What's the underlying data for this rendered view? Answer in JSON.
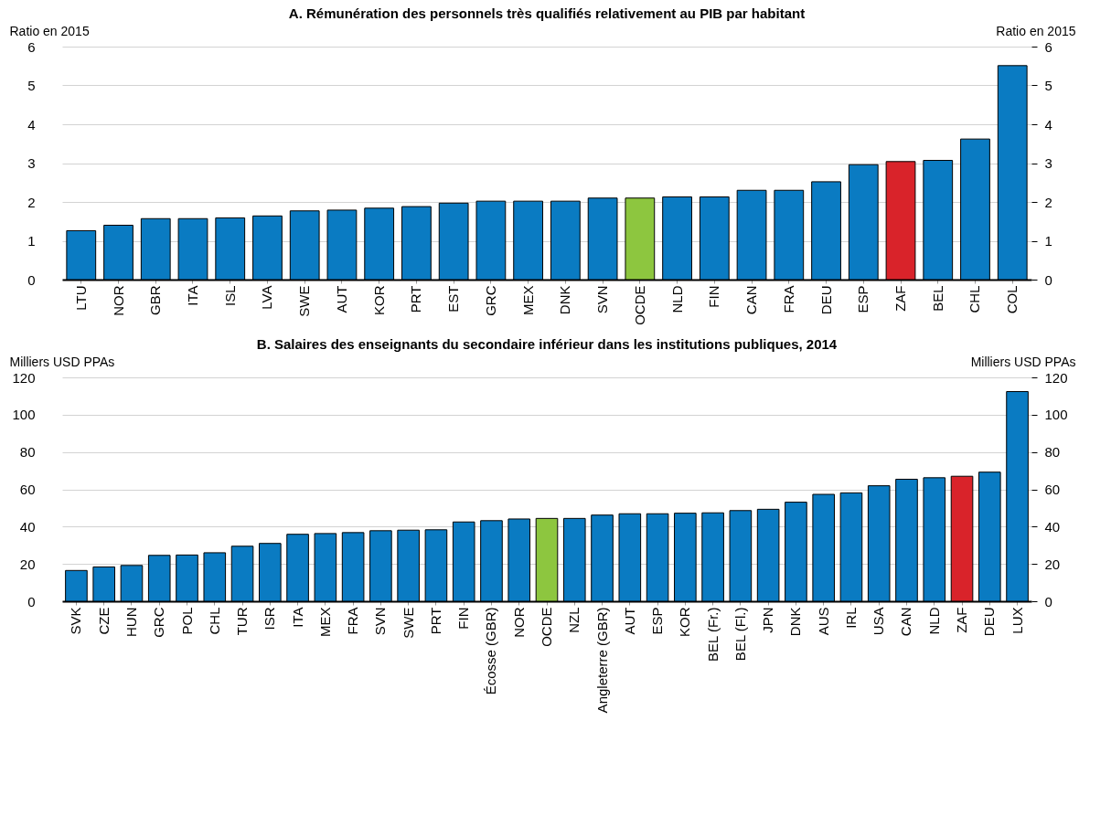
{
  "chart_data": [
    {
      "type": "bar",
      "title": "A. Rémunération des personnels très qualifiés relativement au PIB par habitant",
      "ylabel": "Ratio en 2015",
      "y2label": "Ratio en 2015",
      "categories": [
        "LTU",
        "NOR",
        "GBR",
        "ITA",
        "ISL",
        "LVA",
        "SWE",
        "AUT",
        "KOR",
        "PRT",
        "EST",
        "GRC",
        "MEX",
        "DNK",
        "SVN",
        "OCDE",
        "NLD",
        "FIN",
        "CAN",
        "FRA",
        "DEU",
        "ESP",
        "ZAF",
        "BEL",
        "CHL",
        "COL"
      ],
      "values": [
        1.26,
        1.4,
        1.57,
        1.57,
        1.59,
        1.64,
        1.77,
        1.79,
        1.84,
        1.88,
        1.97,
        2.02,
        2.02,
        2.02,
        2.1,
        2.1,
        2.13,
        2.13,
        2.3,
        2.3,
        2.52,
        2.96,
        3.04,
        3.07,
        3.62,
        5.51
      ],
      "colors": [
        "#0a7bc2",
        "#0a7bc2",
        "#0a7bc2",
        "#0a7bc2",
        "#0a7bc2",
        "#0a7bc2",
        "#0a7bc2",
        "#0a7bc2",
        "#0a7bc2",
        "#0a7bc2",
        "#0a7bc2",
        "#0a7bc2",
        "#0a7bc2",
        "#0a7bc2",
        "#0a7bc2",
        "#8dc63f",
        "#0a7bc2",
        "#0a7bc2",
        "#0a7bc2",
        "#0a7bc2",
        "#0a7bc2",
        "#0a7bc2",
        "#d9232a",
        "#0a7bc2",
        "#0a7bc2",
        "#0a7bc2"
      ],
      "ylim": [
        0,
        6
      ],
      "yticks": [
        0,
        1,
        2,
        3,
        4,
        5,
        6
      ],
      "y2lim": [
        0,
        6
      ],
      "y2ticks": [
        0,
        1,
        2,
        3,
        4,
        5,
        6
      ],
      "grid": "y"
    },
    {
      "type": "bar",
      "title": "B. Salaires des enseignants du secondaire inférieur dans les institutions publiques, 2014",
      "ylabel": "Milliers USD PPAs",
      "y2label": "Milliers USD PPAs",
      "categories": [
        "SVK",
        "CZE",
        "HUN",
        "GRC",
        "POL",
        "CHL",
        "TUR",
        "ISR",
        "ITA",
        "MEX",
        "FRA",
        "SVN",
        "SWE",
        "PRT",
        "FIN",
        "Écosse (GBR)",
        "NOR",
        "OCDE",
        "NZL",
        "Angleterre (GBR)",
        "AUT",
        "ESP",
        "KOR",
        "BEL (Fr.)",
        "BEL (Fl.)",
        "JPN",
        "DNK",
        "AUS",
        "IRL",
        "USA",
        "CAN",
        "NLD",
        "ZAF",
        "DEU",
        "LUX"
      ],
      "values": [
        16.5,
        18.4,
        19.2,
        24.6,
        24.8,
        26.0,
        29.5,
        31.0,
        35.9,
        36.3,
        36.8,
        37.8,
        38.1,
        38.3,
        42.5,
        43.2,
        44.1,
        44.4,
        44.4,
        46.2,
        46.9,
        46.9,
        47.2,
        47.4,
        48.6,
        49.3,
        53.1,
        57.3,
        58.1,
        61.9,
        65.4,
        66.2,
        67.0,
        69.2,
        112.4
      ],
      "colors": [
        "#0a7bc2",
        "#0a7bc2",
        "#0a7bc2",
        "#0a7bc2",
        "#0a7bc2",
        "#0a7bc2",
        "#0a7bc2",
        "#0a7bc2",
        "#0a7bc2",
        "#0a7bc2",
        "#0a7bc2",
        "#0a7bc2",
        "#0a7bc2",
        "#0a7bc2",
        "#0a7bc2",
        "#0a7bc2",
        "#0a7bc2",
        "#8dc63f",
        "#0a7bc2",
        "#0a7bc2",
        "#0a7bc2",
        "#0a7bc2",
        "#0a7bc2",
        "#0a7bc2",
        "#0a7bc2",
        "#0a7bc2",
        "#0a7bc2",
        "#0a7bc2",
        "#0a7bc2",
        "#0a7bc2",
        "#0a7bc2",
        "#0a7bc2",
        "#d9232a",
        "#0a7bc2",
        "#0a7bc2"
      ],
      "ylim": [
        0,
        120
      ],
      "yticks": [
        0,
        20,
        40,
        60,
        80,
        100,
        120
      ],
      "y2lim": [
        0,
        120
      ],
      "y2ticks": [
        0,
        20,
        40,
        60,
        80,
        100,
        120
      ],
      "grid": "y"
    }
  ]
}
